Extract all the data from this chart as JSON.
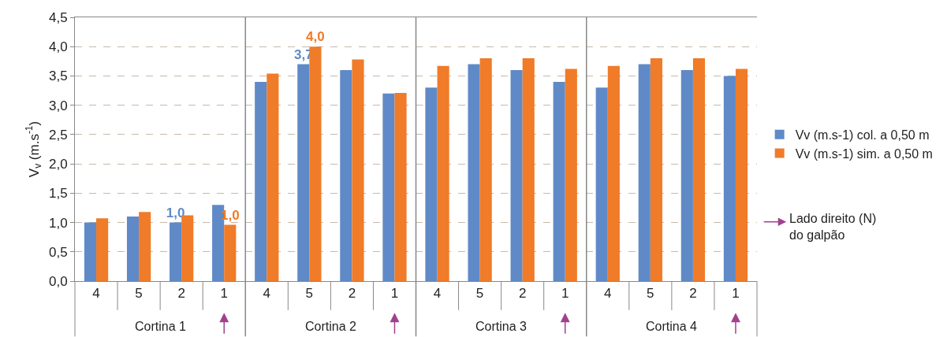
{
  "chart_data": {
    "type": "bar",
    "ylabel": "V$_{v}$ (m.s$^{-1}$)",
    "categories": [
      "4",
      "5",
      "2",
      "1",
      "4",
      "5",
      "2",
      "1",
      "4",
      "5",
      "2",
      "1",
      "4",
      "5",
      "2",
      "1"
    ],
    "series": [
      {
        "name": "Vv (m.s-1) col. a 0,50 m",
        "color": "#5f8ac7",
        "values": [
          1.0,
          1.1,
          1.0,
          1.3,
          3.4,
          3.7,
          3.6,
          3.2,
          3.3,
          3.7,
          3.6,
          3.4,
          3.3,
          3.7,
          3.6,
          3.5
        ],
        "value_labels": [
          null,
          null,
          "1,0",
          null,
          null,
          "3,7",
          null,
          null,
          null,
          null,
          null,
          null,
          null,
          null,
          null,
          null
        ]
      },
      {
        "name": "Vv (m.s-1) sim. a 0,50 m",
        "color": "#f07b28",
        "values": [
          1.07,
          1.18,
          1.12,
          0.96,
          3.54,
          4.0,
          3.78,
          3.21,
          3.67,
          3.8,
          3.8,
          3.62,
          3.67,
          3.8,
          3.8,
          3.62
        ],
        "value_labels": [
          null,
          null,
          null,
          "1,0",
          null,
          "4,0",
          null,
          null,
          null,
          null,
          null,
          null,
          null,
          null,
          null,
          null
        ]
      }
    ],
    "ylim": [
      0,
      4.5
    ],
    "yticks": [
      {
        "value": 0,
        "label": "0,0"
      },
      {
        "value": 0.5,
        "label": "0,5"
      },
      {
        "value": 1,
        "label": "1,0"
      },
      {
        "value": 1.5,
        "label": "1,5"
      },
      {
        "value": 2,
        "label": "2,0"
      },
      {
        "value": 2.5,
        "label": "2,5"
      },
      {
        "value": 3,
        "label": "3,0"
      },
      {
        "value": 3.5,
        "label": "3,5"
      },
      {
        "value": 4,
        "label": "4,0"
      },
      {
        "value": 4.5,
        "label": "4,5"
      }
    ],
    "grid": "y",
    "legend": "right",
    "annotations": [
      "Cortina 1",
      "Cortina 2",
      "Cortina 3",
      "Cortina 4",
      "Lado direito (N)\ndo galpão"
    ]
  }
}
